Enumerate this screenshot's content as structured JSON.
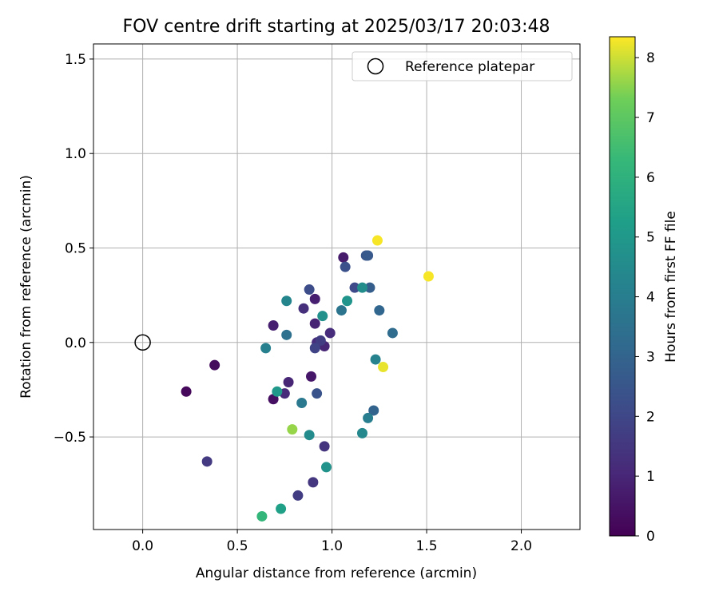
{
  "chart_data": {
    "type": "scatter",
    "title": "FOV centre drift starting at 2025/03/17 20:03:48",
    "xlabel": "Angular distance from reference (arcmin)",
    "ylabel": "Rotation from reference (arcmin)",
    "xlim": [
      -0.26,
      2.31
    ],
    "ylim": [
      -0.99,
      1.58
    ],
    "xticks": [
      0.0,
      0.5,
      1.0,
      1.5,
      2.0
    ],
    "xtick_labels": [
      "0.0",
      "0.5",
      "1.0",
      "1.5",
      "2.0"
    ],
    "yticks": [
      -0.5,
      0.0,
      0.5,
      1.0,
      1.5
    ],
    "ytick_labels": [
      "−0.5",
      "0.0",
      "0.5",
      "1.0",
      "1.5"
    ],
    "grid": true,
    "legend": {
      "position": "top-right",
      "label": "Reference platepar"
    },
    "reference_point": {
      "x": 0.0,
      "y": 0.0
    },
    "colorbar": {
      "label": "Hours from first FF file",
      "range": [
        0,
        8.35
      ],
      "ticks": [
        0,
        1,
        2,
        3,
        4,
        5,
        6,
        7,
        8
      ],
      "tick_labels": [
        "0",
        "1",
        "2",
        "3",
        "4",
        "5",
        "6",
        "7",
        "8"
      ],
      "colormap": "viridis"
    },
    "points": [
      {
        "x": 0.23,
        "y": -0.26,
        "c": 0.2
      },
      {
        "x": 0.38,
        "y": -0.12,
        "c": 0.3
      },
      {
        "x": 0.69,
        "y": -0.3,
        "c": 0.4
      },
      {
        "x": 0.89,
        "y": -0.18,
        "c": 0.6
      },
      {
        "x": 1.06,
        "y": 0.45,
        "c": 0.7
      },
      {
        "x": 0.69,
        "y": 0.09,
        "c": 0.8
      },
      {
        "x": 0.91,
        "y": 0.23,
        "c": 0.8
      },
      {
        "x": 0.91,
        "y": 0.1,
        "c": 0.9
      },
      {
        "x": 0.96,
        "y": -0.02,
        "c": 1.0
      },
      {
        "x": 0.77,
        "y": -0.21,
        "c": 1.0
      },
      {
        "x": 0.75,
        "y": -0.27,
        "c": 1.1
      },
      {
        "x": 0.99,
        "y": 0.05,
        "c": 1.2
      },
      {
        "x": 0.92,
        "y": 0.0,
        "c": 1.2
      },
      {
        "x": 0.85,
        "y": 0.18,
        "c": 1.3
      },
      {
        "x": 0.96,
        "y": -0.55,
        "c": 1.4
      },
      {
        "x": 0.9,
        "y": -0.74,
        "c": 1.5
      },
      {
        "x": 0.34,
        "y": -0.63,
        "c": 1.6
      },
      {
        "x": 0.82,
        "y": -0.81,
        "c": 1.7
      },
      {
        "x": 0.94,
        "y": 0.01,
        "c": 1.7
      },
      {
        "x": 0.91,
        "y": -0.03,
        "c": 1.9
      },
      {
        "x": 1.12,
        "y": 0.29,
        "c": 2.1
      },
      {
        "x": 0.88,
        "y": 0.28,
        "c": 2.2
      },
      {
        "x": 1.07,
        "y": 0.4,
        "c": 2.3
      },
      {
        "x": 0.92,
        "y": -0.27,
        "c": 2.4
      },
      {
        "x": 1.18,
        "y": 0.46,
        "c": 2.5
      },
      {
        "x": 1.19,
        "y": 0.46,
        "c": 2.6
      },
      {
        "x": 1.2,
        "y": 0.29,
        "c": 2.8
      },
      {
        "x": 1.22,
        "y": -0.36,
        "c": 3.0
      },
      {
        "x": 1.25,
        "y": 0.17,
        "c": 3.1
      },
      {
        "x": 1.32,
        "y": 0.05,
        "c": 3.3
      },
      {
        "x": 0.76,
        "y": 0.04,
        "c": 3.5
      },
      {
        "x": 1.05,
        "y": 0.17,
        "c": 3.6
      },
      {
        "x": 0.84,
        "y": -0.32,
        "c": 3.8
      },
      {
        "x": 1.19,
        "y": -0.4,
        "c": 4.0
      },
      {
        "x": 0.65,
        "y": -0.03,
        "c": 4.1
      },
      {
        "x": 1.23,
        "y": -0.09,
        "c": 4.2
      },
      {
        "x": 0.76,
        "y": 0.22,
        "c": 4.3
      },
      {
        "x": 1.16,
        "y": -0.48,
        "c": 4.4
      },
      {
        "x": 0.88,
        "y": -0.49,
        "c": 4.5
      },
      {
        "x": 1.16,
        "y": 0.29,
        "c": 4.6
      },
      {
        "x": 0.95,
        "y": 0.14,
        "c": 4.7
      },
      {
        "x": 0.97,
        "y": -0.66,
        "c": 4.8
      },
      {
        "x": 1.08,
        "y": 0.22,
        "c": 4.9
      },
      {
        "x": 0.71,
        "y": -0.26,
        "c": 5.0
      },
      {
        "x": 0.73,
        "y": -0.88,
        "c": 5.3
      },
      {
        "x": 0.63,
        "y": -0.92,
        "c": 6.2
      },
      {
        "x": 0.79,
        "y": -0.46,
        "c": 7.6
      },
      {
        "x": 1.51,
        "y": 0.35,
        "c": 8.3
      },
      {
        "x": 1.24,
        "y": 0.54,
        "c": 8.3
      },
      {
        "x": 1.27,
        "y": -0.13,
        "c": 8.2
      }
    ]
  }
}
